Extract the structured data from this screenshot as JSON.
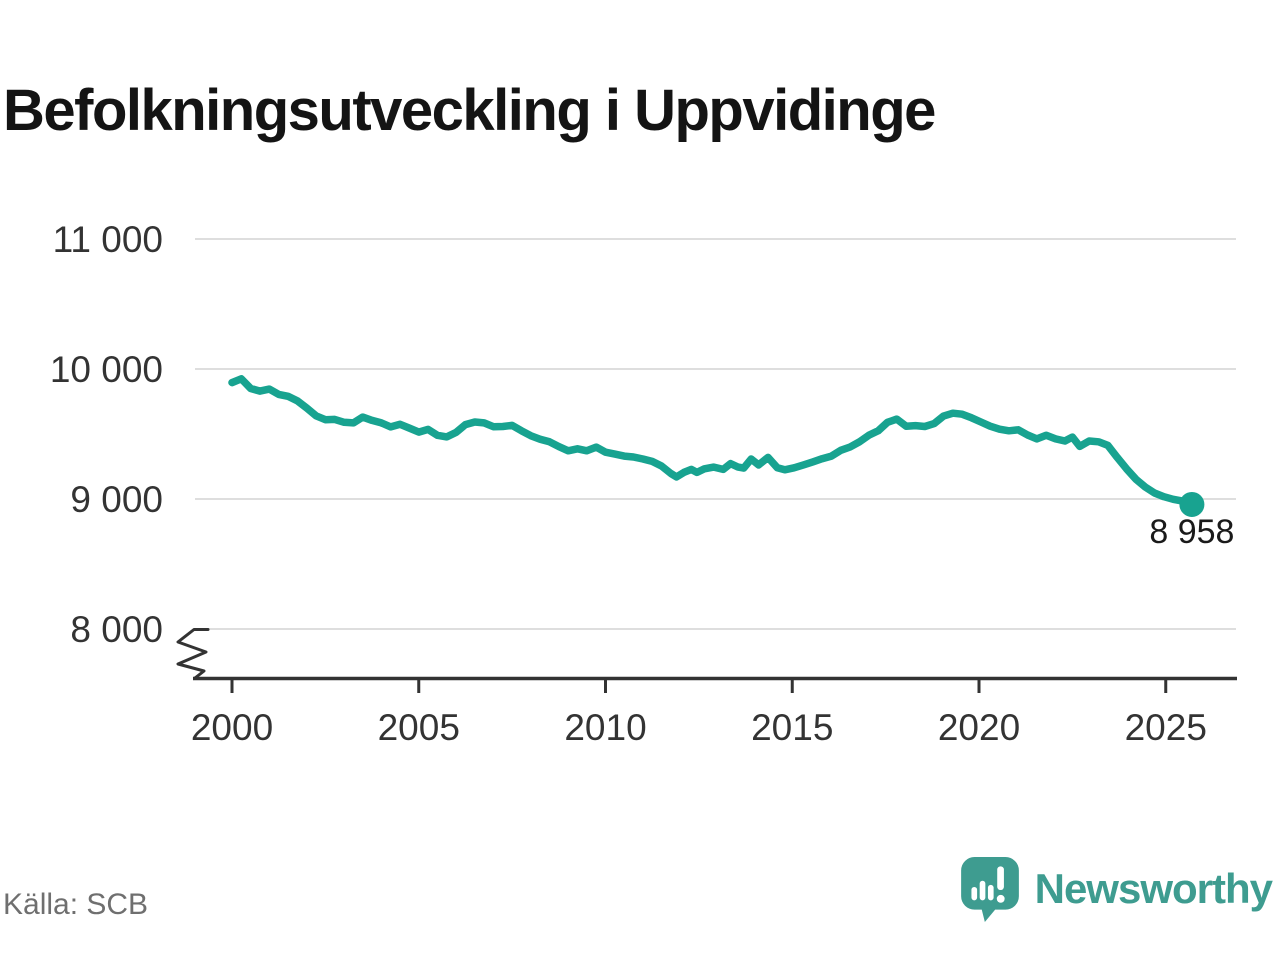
{
  "page": {
    "background": "#ffffff"
  },
  "colors": {
    "line": "#18a390",
    "end_dot": "#18a390",
    "grid": "#dedede",
    "axis": "#333333",
    "tick_label": "#333333",
    "title": "#141414",
    "annotation": "#1a1a1a",
    "source": "#6f6f6f",
    "logo": "#3e9c90"
  },
  "branding": {
    "wordmark": "Newsworthy",
    "logo_icon": "newsworthy-speech-bubble-bar-chart-icon"
  },
  "chart_data": {
    "type": "line",
    "title": "Befolkningsutveckling i Uppvidinge",
    "source": "Källa: SCB",
    "legend": "none",
    "grid": "horizontal",
    "line_color": "#18a390",
    "x_range": [
      2000,
      2025.7
    ],
    "y_axis": {
      "min": 8000,
      "max": 11000,
      "break_symbol_at_bottom": true
    },
    "x_ticks": [
      {
        "value": 2000,
        "label": "2000"
      },
      {
        "value": 2005,
        "label": "2005"
      },
      {
        "value": 2010,
        "label": "2010"
      },
      {
        "value": 2015,
        "label": "2015"
      },
      {
        "value": 2020,
        "label": "2020"
      },
      {
        "value": 2025,
        "label": "2025"
      }
    ],
    "y_ticks": [
      {
        "value": 11000,
        "label": "11 000"
      },
      {
        "value": 10000,
        "label": "10 000"
      },
      {
        "value": 9000,
        "label": "9 000"
      },
      {
        "value": 8000,
        "label": "8 000"
      }
    ],
    "end_annotation": {
      "label": "8 958",
      "value": 8958,
      "x": 2025.7
    },
    "points": [
      [
        2000.0,
        9895
      ],
      [
        2000.25,
        9925
      ],
      [
        2000.5,
        9850
      ],
      [
        2000.75,
        9830
      ],
      [
        2001.0,
        9845
      ],
      [
        2001.25,
        9805
      ],
      [
        2001.5,
        9790
      ],
      [
        2001.75,
        9755
      ],
      [
        2002.0,
        9700
      ],
      [
        2002.25,
        9640
      ],
      [
        2002.5,
        9610
      ],
      [
        2002.75,
        9612
      ],
      [
        2003.0,
        9590
      ],
      [
        2003.25,
        9585
      ],
      [
        2003.5,
        9630
      ],
      [
        2003.75,
        9605
      ],
      [
        2004.0,
        9585
      ],
      [
        2004.25,
        9555
      ],
      [
        2004.5,
        9575
      ],
      [
        2004.75,
        9545
      ],
      [
        2005.0,
        9515
      ],
      [
        2005.25,
        9535
      ],
      [
        2005.5,
        9490
      ],
      [
        2005.75,
        9478
      ],
      [
        2006.0,
        9512
      ],
      [
        2006.25,
        9572
      ],
      [
        2006.5,
        9592
      ],
      [
        2006.75,
        9585
      ],
      [
        2007.0,
        9556
      ],
      [
        2007.25,
        9558
      ],
      [
        2007.5,
        9566
      ],
      [
        2007.75,
        9525
      ],
      [
        2008.0,
        9487
      ],
      [
        2008.25,
        9460
      ],
      [
        2008.5,
        9440
      ],
      [
        2008.75,
        9403
      ],
      [
        2009.0,
        9371
      ],
      [
        2009.25,
        9386
      ],
      [
        2009.5,
        9371
      ],
      [
        2009.75,
        9399
      ],
      [
        2010.0,
        9360
      ],
      [
        2010.25,
        9345
      ],
      [
        2010.5,
        9330
      ],
      [
        2010.75,
        9323
      ],
      [
        2011.0,
        9308
      ],
      [
        2011.25,
        9289
      ],
      [
        2011.5,
        9254
      ],
      [
        2011.75,
        9196
      ],
      [
        2011.9,
        9170
      ],
      [
        2012.1,
        9205
      ],
      [
        2012.3,
        9228
      ],
      [
        2012.45,
        9205
      ],
      [
        2012.65,
        9232
      ],
      [
        2012.9,
        9245
      ],
      [
        2013.15,
        9228
      ],
      [
        2013.35,
        9272
      ],
      [
        2013.55,
        9245
      ],
      [
        2013.7,
        9238
      ],
      [
        2013.9,
        9308
      ],
      [
        2014.1,
        9262
      ],
      [
        2014.35,
        9320
      ],
      [
        2014.6,
        9240
      ],
      [
        2014.8,
        9225
      ],
      [
        2015.05,
        9240
      ],
      [
        2015.3,
        9262
      ],
      [
        2015.55,
        9285
      ],
      [
        2015.8,
        9310
      ],
      [
        2016.05,
        9330
      ],
      [
        2016.3,
        9375
      ],
      [
        2016.55,
        9400
      ],
      [
        2016.8,
        9440
      ],
      [
        2017.05,
        9490
      ],
      [
        2017.3,
        9525
      ],
      [
        2017.55,
        9590
      ],
      [
        2017.8,
        9615
      ],
      [
        2018.05,
        9560
      ],
      [
        2018.3,
        9565
      ],
      [
        2018.55,
        9558
      ],
      [
        2018.8,
        9580
      ],
      [
        2019.05,
        9638
      ],
      [
        2019.3,
        9660
      ],
      [
        2019.55,
        9652
      ],
      [
        2019.8,
        9625
      ],
      [
        2020.05,
        9592
      ],
      [
        2020.3,
        9560
      ],
      [
        2020.55,
        9537
      ],
      [
        2020.8,
        9525
      ],
      [
        2021.05,
        9532
      ],
      [
        2021.3,
        9492
      ],
      [
        2021.55,
        9462
      ],
      [
        2021.8,
        9490
      ],
      [
        2022.05,
        9462
      ],
      [
        2022.3,
        9446
      ],
      [
        2022.5,
        9476
      ],
      [
        2022.7,
        9405
      ],
      [
        2022.95,
        9446
      ],
      [
        2023.2,
        9440
      ],
      [
        2023.45,
        9412
      ],
      [
        2023.7,
        9320
      ],
      [
        2023.95,
        9232
      ],
      [
        2024.2,
        9152
      ],
      [
        2024.45,
        9092
      ],
      [
        2024.7,
        9046
      ],
      [
        2024.95,
        9018
      ],
      [
        2025.2,
        8998
      ],
      [
        2025.45,
        8984
      ],
      [
        2025.7,
        8958
      ]
    ]
  }
}
